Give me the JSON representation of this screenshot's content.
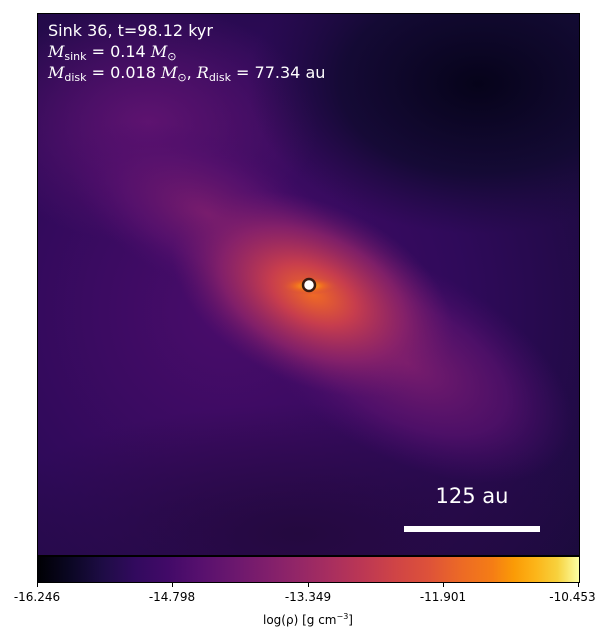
{
  "annotation": {
    "line1": "Sink 36, t=98.12 kyr",
    "msink_symbol": "M",
    "msink_sub": "sink",
    "msink_value": " = 0.14 ",
    "msun_symbol": "M",
    "msun_sub": "⊙",
    "mdisk_symbol": "M",
    "mdisk_sub": "disk",
    "mdisk_value": " = 0.018 ",
    "msun2_symbol": "M",
    "msun2_sub": "⊙",
    "sep": ", ",
    "rdisk_symbol": "R",
    "rdisk_sub": "disk",
    "rdisk_value": " = 77.34 au"
  },
  "scale_bar": {
    "label": "125 au"
  },
  "colorbar": {
    "colormap": "inferno",
    "range": [
      -16.246,
      -10.453
    ],
    "ticks": [
      "-16.246",
      "-14.798",
      "-13.349",
      "-11.901",
      "-10.453"
    ],
    "label_main": "log(ρ) [g cm",
    "label_exp": "−3",
    "label_end": "]"
  }
}
